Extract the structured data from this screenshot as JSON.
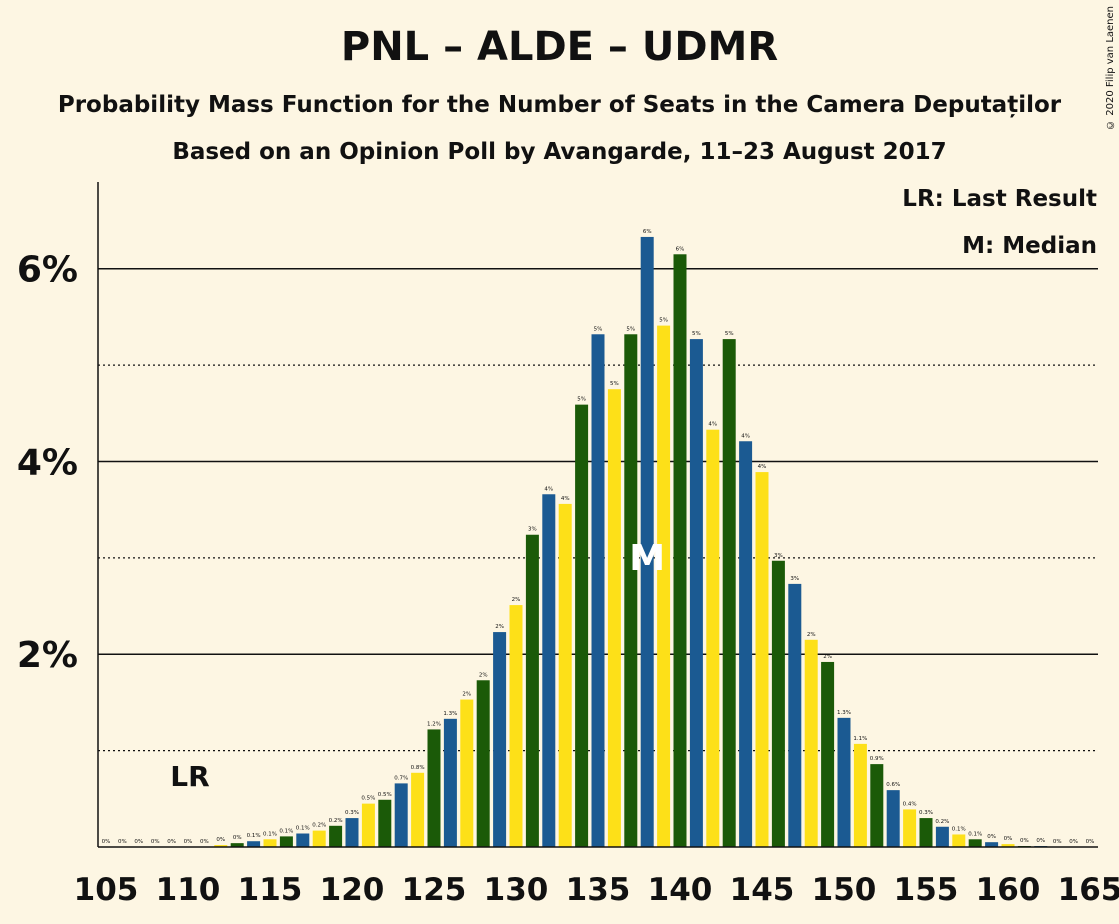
{
  "title": "PNL – ALDE – UDMR",
  "subtitle": "Probability Mass Function for the Number of Seats in the Camera Deputaților",
  "subtitle2": "Based on an Opinion Poll by Avangarde, 11–23 August 2017",
  "copyright": "© 2020 Filip van Laenen",
  "legend": {
    "lr": "LR: Last Result",
    "m": "M: Median"
  },
  "colors": {
    "pnl": "#1b5a92",
    "alde": "#fde018",
    "udmr": "#1b5a08",
    "background": "#fdf6e3"
  },
  "chart_data": {
    "type": "bar",
    "x": [
      105,
      106,
      107,
      108,
      109,
      110,
      111,
      112,
      113,
      114,
      115,
      116,
      117,
      118,
      119,
      120,
      121,
      122,
      123,
      124,
      125,
      126,
      127,
      128,
      129,
      130,
      131,
      132,
      133,
      134,
      135,
      136,
      137,
      138,
      139,
      140,
      141,
      142,
      143,
      144,
      145,
      146,
      147,
      148,
      149,
      150,
      151,
      152,
      153,
      154,
      155,
      156,
      157,
      158,
      159,
      160,
      161,
      162,
      163,
      164,
      165
    ],
    "values": [
      0,
      0,
      0,
      0,
      0,
      0,
      0,
      0.0002,
      0.0004,
      0.0006,
      0.0008,
      0.0011,
      0.0014,
      0.0017,
      0.0022,
      0.003,
      0.0045,
      0.0049,
      0.0066,
      0.0077,
      0.0122,
      0.0133,
      0.0153,
      0.0173,
      0.0223,
      0.0251,
      0.0324,
      0.0366,
      0.0356,
      0.0459,
      0.0532,
      0.0475,
      0.0532,
      0.0633,
      0.0541,
      0.0615,
      0.0527,
      0.0433,
      0.0527,
      0.0421,
      0.0389,
      0.0297,
      0.0273,
      0.0215,
      0.0192,
      0.0134,
      0.0107,
      0.0086,
      0.0059,
      0.0039,
      0.003,
      0.0021,
      0.0013,
      0.0008,
      0.0005,
      0.0003,
      0.0001,
      0.0001,
      0,
      0,
      0
    ],
    "labels": [
      "0%",
      "0%",
      "0%",
      "0%",
      "0%",
      "0%",
      "0%",
      "0%",
      "0%",
      "0.1%",
      "0.1%",
      "0.1%",
      "0.1%",
      "0.2%",
      "0.2%",
      "0.3%",
      "0.5%",
      "0.5%",
      "0.7%",
      "0.8%",
      "1.2%",
      "1.3%",
      "2%",
      "2%",
      "2%",
      "2%",
      "3%",
      "4%",
      "4%",
      "5%",
      "5%",
      "5%",
      "5%",
      "6%",
      "5%",
      "6%",
      "5%",
      "4%",
      "5%",
      "4%",
      "4%",
      "3%",
      "3%",
      "2%",
      "2%",
      "1.3%",
      "1.1%",
      "0.9%",
      "0.6%",
      "0.4%",
      "0.3%",
      "0.2%",
      "0.1%",
      "0.1%",
      "0%",
      "0%",
      "0%",
      "0%",
      "0%",
      "0%",
      "0%"
    ],
    "color_cycle": [
      "pnl",
      "alde",
      "udmr"
    ],
    "x_ticks": [
      "105",
      "110",
      "115",
      "120",
      "125",
      "130",
      "135",
      "140",
      "145",
      "150",
      "155",
      "160",
      "165"
    ],
    "y_ticks": [
      "2%",
      "4%",
      "6%"
    ],
    "ylim": [
      0,
      0.069
    ],
    "last_result": 110,
    "last_result_label": "LR",
    "median": 138,
    "median_label": "M",
    "grid": "solid at labeled percentages, dotted at odd percentages"
  }
}
